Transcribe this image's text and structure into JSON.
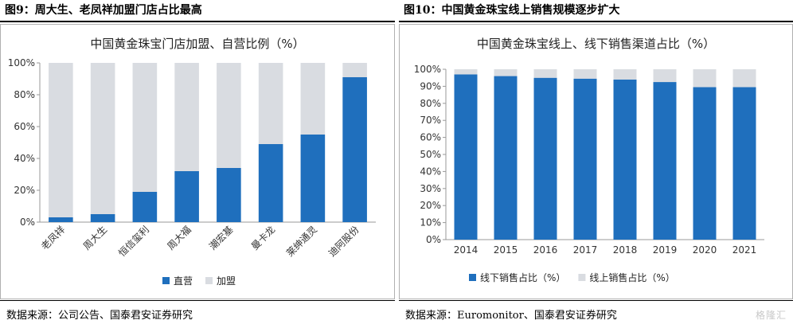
{
  "left": {
    "figure_title": "图9：周大生、老凤祥加盟门店占比最高",
    "source": "数据来源：公司公告、国泰君安证券研究"
  },
  "right": {
    "figure_title": "图10：中国黄金珠宝线上销售规模逐步扩大",
    "source": "数据来源：Euromonitor、国泰君安证券研究"
  },
  "watermark": "格隆汇",
  "colors": {
    "primary": "#1f6fbd",
    "secondary": "#d9dce1"
  },
  "chart_data": [
    {
      "type": "bar",
      "stacked": true,
      "title": "中国黄金珠宝门店加盟、自营比例（%）",
      "categories": [
        "老凤祥",
        "周大生",
        "恒信玺利",
        "周大福",
        "潮宏基",
        "曼卡龙",
        "莱绅通灵",
        "迪阿股份"
      ],
      "series": [
        {
          "name": "直营",
          "values": [
            3,
            5,
            19,
            32,
            34,
            49,
            55,
            91
          ]
        },
        {
          "name": "加盟",
          "values": [
            97,
            95,
            81,
            68,
            66,
            51,
            45,
            9
          ]
        }
      ],
      "ylim": [
        0,
        100
      ],
      "yticks": [
        "0%",
        "20%",
        "40%",
        "60%",
        "80%",
        "100%"
      ],
      "legend": "bottom",
      "xlabel_rotation": "diagonal"
    },
    {
      "type": "bar",
      "stacked": true,
      "title": "中国黄金珠宝线上、线下销售渠道占比（%）",
      "categories": [
        "2014",
        "2015",
        "2016",
        "2017",
        "2018",
        "2019",
        "2020",
        "2021"
      ],
      "series": [
        {
          "name": "线下销售占比（%）",
          "values": [
            97,
            96,
            95,
            94.5,
            94,
            92.5,
            89.5,
            89.5
          ]
        },
        {
          "name": "线上销售占比（%）",
          "values": [
            3,
            4,
            5,
            5.5,
            6,
            7.5,
            10.5,
            10.5
          ]
        }
      ],
      "ylim": [
        0,
        100
      ],
      "yticks": [
        "0%",
        "10%",
        "20%",
        "30%",
        "40%",
        "50%",
        "60%",
        "70%",
        "80%",
        "90%",
        "100%"
      ],
      "legend": "bottom"
    }
  ]
}
